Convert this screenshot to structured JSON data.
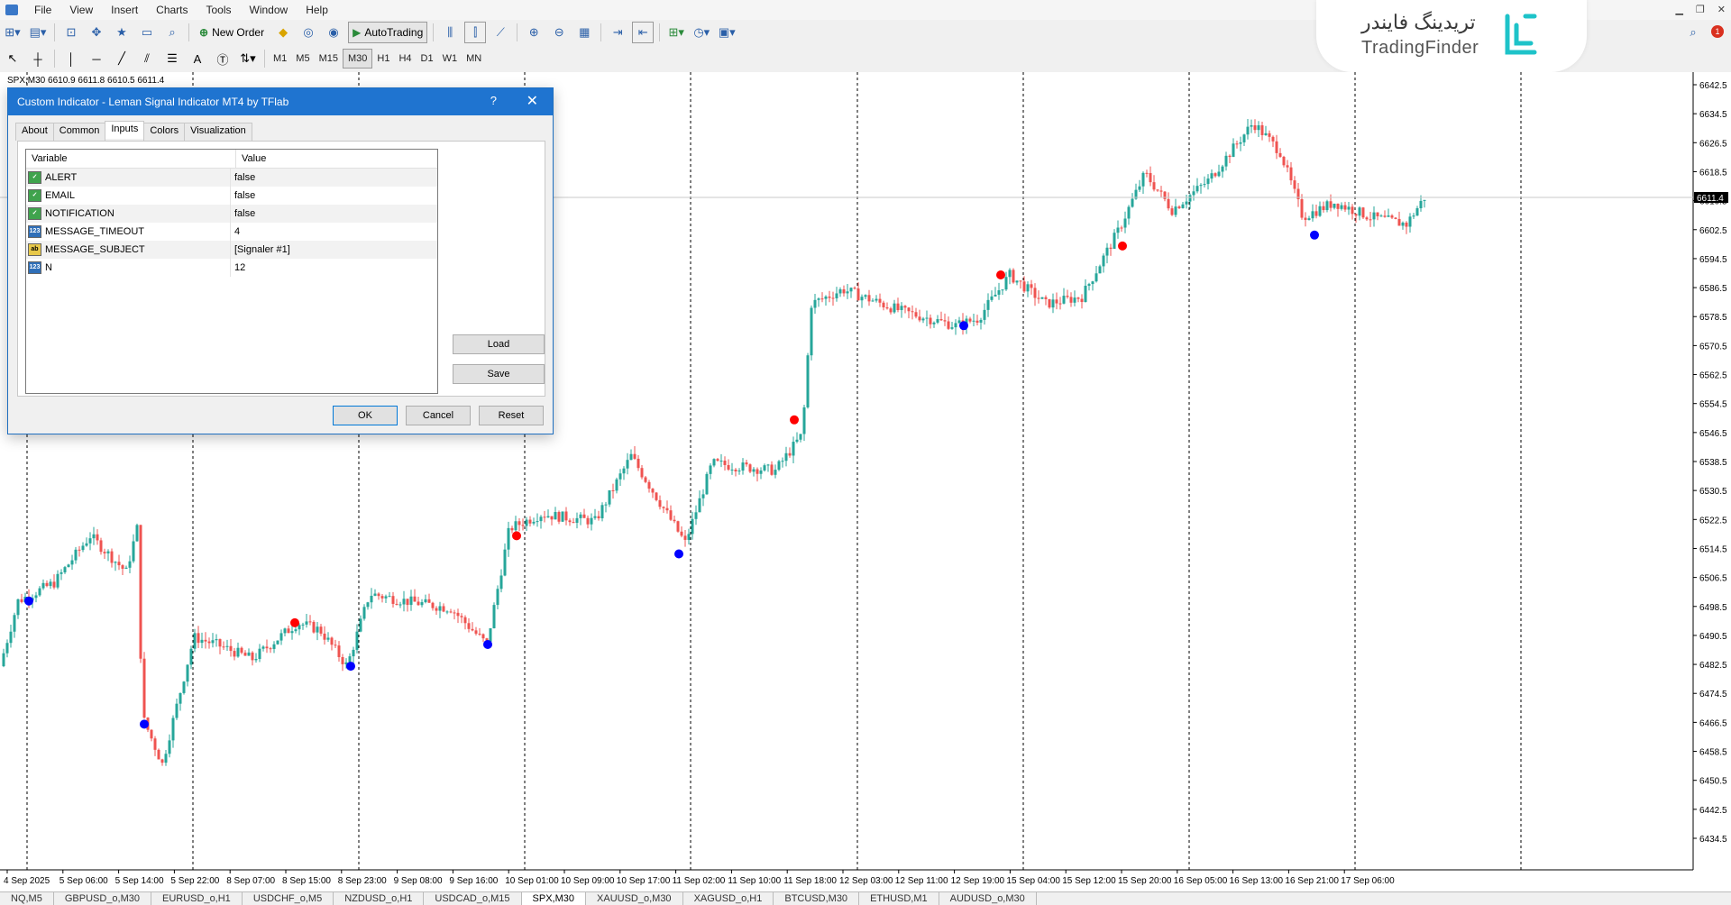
{
  "menu": [
    "File",
    "View",
    "Insert",
    "Charts",
    "Tools",
    "Window",
    "Help"
  ],
  "toolbar": {
    "new_order": "New Order",
    "auto_trading": "AutoTrading",
    "timeframes": [
      "M1",
      "M5",
      "M15",
      "M30",
      "H1",
      "H4",
      "D1",
      "W1",
      "MN"
    ],
    "active_timeframe": "M30",
    "notification_count": "1"
  },
  "logo": {
    "persian": "تریدینگ فایندر",
    "english": "TradingFinder"
  },
  "chart": {
    "info": "SPX,M30  6610.9 6611.8 6610.5 6611.4",
    "current_price": "6611.4",
    "price_labels": [
      "6642.5",
      "6634.5",
      "6626.5",
      "6618.5",
      "6610.5",
      "6602.5",
      "6594.5",
      "6586.5",
      "6578.5",
      "6570.5",
      "6562.5",
      "6554.5",
      "6546.5",
      "6538.5",
      "6530.5",
      "6522.5",
      "6514.5",
      "6506.5",
      "6498.5",
      "6490.5",
      "6482.5",
      "6474.5",
      "6466.5",
      "6458.5",
      "6450.5",
      "6442.5",
      "6434.5"
    ],
    "time_labels": [
      "4 Sep 2025",
      "5 Sep 06:00",
      "5 Sep 14:00",
      "5 Sep 22:00",
      "8 Sep 07:00",
      "8 Sep 15:00",
      "8 Sep 23:00",
      "9 Sep 08:00",
      "9 Sep 16:00",
      "10 Sep 01:00",
      "10 Sep 09:00",
      "10 Sep 17:00",
      "11 Sep 02:00",
      "11 Sep 10:00",
      "11 Sep 18:00",
      "12 Sep 03:00",
      "12 Sep 11:00",
      "12 Sep 19:00",
      "15 Sep 04:00",
      "15 Sep 12:00",
      "15 Sep 20:00",
      "16 Sep 05:00",
      "16 Sep 13:00",
      "16 Sep 21:00",
      "17 Sep 06:00"
    ],
    "colors": {
      "bull": "#26a69a",
      "bear": "#ef5350",
      "buy_signal": "#0000ff",
      "sell_signal": "#ff0000"
    }
  },
  "dialog": {
    "title": "Custom Indicator - Leman Signal Indicator MT4 by TFlab",
    "help": "?",
    "close": "✕",
    "tabs": [
      "About",
      "Common",
      "Inputs",
      "Colors",
      "Visualization"
    ],
    "active_tab": "Inputs",
    "columns": {
      "variable": "Variable",
      "value": "Value"
    },
    "params": [
      {
        "type": "bool",
        "icon": "✓",
        "name": "ALERT",
        "value": "false"
      },
      {
        "type": "bool",
        "icon": "✓",
        "name": "EMAIL",
        "value": "false"
      },
      {
        "type": "bool",
        "icon": "✓",
        "name": "NOTIFICATION",
        "value": "false"
      },
      {
        "type": "int",
        "icon": "123",
        "name": "MESSAGE_TIMEOUT",
        "value": "4"
      },
      {
        "type": "str",
        "icon": "ab",
        "name": "MESSAGE_SUBJECT",
        "value": "[Signaler #1]"
      },
      {
        "type": "int",
        "icon": "123",
        "name": "N",
        "value": "12"
      }
    ],
    "buttons": {
      "load": "Load",
      "save": "Save",
      "ok": "OK",
      "cancel": "Cancel",
      "reset": "Reset"
    }
  },
  "symbol_tabs": [
    "NQ,M5",
    "GBPUSD_o,M30",
    "EURUSD_o,H1",
    "USDCHF_o,M5",
    "NZDUSD_o,H1",
    "USDCAD_o,M15",
    "SPX,M30",
    "XAUUSD_o,M30",
    "XAGUSD_o,H1",
    "BTCUSD,M30",
    "ETHUSD,M1",
    "AUDUSD_o,M30"
  ],
  "active_symbol_tab": "SPX,M30"
}
